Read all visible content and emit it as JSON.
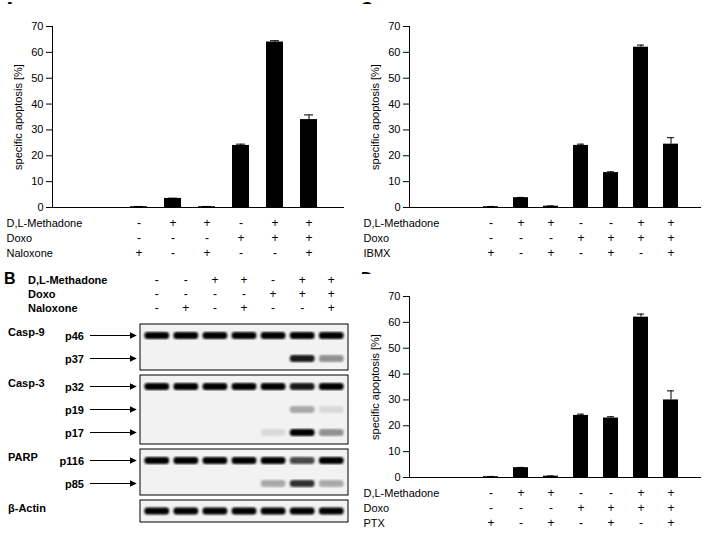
{
  "chart_data": [
    {
      "type": "bar",
      "title": "A",
      "ylabel": "specific apoptosis [%]",
      "categories": [
        null,
        null,
        null,
        null,
        null,
        null
      ],
      "values": [
        0.3,
        3.5,
        0.3,
        24,
        64,
        34
      ],
      "errors": [
        0.1,
        0.1,
        0.1,
        0.5,
        0.5,
        1.8
      ],
      "color": "#000000",
      "ylim": [
        0,
        70
      ],
      "yticks": [
        0,
        10,
        20,
        30,
        40,
        50,
        60,
        70
      ],
      "conditions": [
        {
          "name": "D,L-Methadone",
          "marks": [
            "-",
            "+",
            "+",
            "-",
            "+",
            "+"
          ]
        },
        {
          "name": "Doxo",
          "marks": [
            "-",
            "-",
            "-",
            "+",
            "+",
            "+"
          ]
        },
        {
          "name": "Naloxone",
          "marks": [
            "+",
            "-",
            "+",
            "-",
            "-",
            "+"
          ]
        }
      ]
    },
    {
      "type": "bar",
      "title": "C",
      "ylabel": "specific apoptosis [%]",
      "categories": [
        null,
        null,
        null,
        null,
        null,
        null,
        null
      ],
      "values": [
        0.3,
        3.8,
        0.5,
        24,
        13.5,
        62,
        24.5
      ],
      "errors": [
        0.1,
        0.1,
        0.1,
        0.5,
        0.3,
        0.8,
        2.5
      ],
      "color": "#000000",
      "ylim": [
        0,
        70
      ],
      "yticks": [
        0,
        10,
        20,
        30,
        40,
        50,
        60,
        70
      ],
      "conditions": [
        {
          "name": "D,L-Methadone",
          "marks": [
            "-",
            "+",
            "+",
            "-",
            "-",
            "+",
            "+"
          ]
        },
        {
          "name": "Doxo",
          "marks": [
            "-",
            "-",
            "-",
            "+",
            "+",
            "+",
            "+"
          ]
        },
        {
          "name": "IBMX",
          "marks": [
            "+",
            "-",
            "+",
            "-",
            "+",
            "-",
            "+"
          ]
        }
      ]
    },
    {
      "type": "bar",
      "title": "D",
      "ylabel": "specific apoptosis [%]",
      "categories": [
        null,
        null,
        null,
        null,
        null,
        null,
        null
      ],
      "values": [
        0.3,
        3.8,
        0.5,
        24,
        23,
        62,
        30
      ],
      "errors": [
        0.1,
        0.1,
        0.1,
        0.5,
        0.5,
        1.2,
        3.5
      ],
      "color": "#000000",
      "ylim": [
        0,
        70
      ],
      "yticks": [
        0,
        10,
        20,
        30,
        40,
        50,
        60,
        70
      ],
      "conditions": [
        {
          "name": "D,L-Methadone",
          "marks": [
            "-",
            "+",
            "+",
            "-",
            "-",
            "+",
            "+"
          ]
        },
        {
          "name": "Doxo",
          "marks": [
            "-",
            "-",
            "-",
            "+",
            "+",
            "+",
            "+"
          ]
        },
        {
          "name": "PTX",
          "marks": [
            "+",
            "-",
            "+",
            "-",
            "+",
            "-",
            "+"
          ]
        }
      ]
    }
  ],
  "blot": {
    "title": "B",
    "conditions": [
      {
        "name": "D,L-Methadone",
        "marks": [
          "-",
          "-",
          "+",
          "+",
          "-",
          "+",
          "+"
        ]
      },
      {
        "name": "Doxo",
        "marks": [
          "-",
          "-",
          "-",
          "-",
          "+",
          "+",
          "+"
        ]
      },
      {
        "name": "Naloxone",
        "marks": [
          "-",
          "+",
          "-",
          "+",
          "-",
          "-",
          "+"
        ]
      }
    ],
    "panels": [
      {
        "name": "Casp-9",
        "bands": [
          {
            "label": "p46",
            "intensity": [
              1,
              1,
              1,
              1,
              1,
              1,
              1
            ]
          },
          {
            "label": "p37",
            "intensity": [
              0,
              0,
              0,
              0,
              0,
              0.9,
              0.4
            ]
          }
        ]
      },
      {
        "name": "Casp-3",
        "bands": [
          {
            "label": "p32",
            "intensity": [
              1,
              1,
              1,
              1,
              1,
              0.9,
              1
            ]
          },
          {
            "label": "p19",
            "intensity": [
              0,
              0,
              0,
              0,
              0,
              0.3,
              0.1
            ]
          },
          {
            "label": "p17",
            "intensity": [
              0,
              0,
              0,
              0,
              0.1,
              1,
              0.4
            ]
          }
        ]
      },
      {
        "name": "PARP",
        "bands": [
          {
            "label": "p116",
            "intensity": [
              1,
              1,
              1,
              1,
              1,
              0.7,
              1
            ]
          },
          {
            "label": "p85",
            "intensity": [
              0,
              0,
              0,
              0,
              0.3,
              0.8,
              0.3
            ]
          }
        ]
      },
      {
        "name": "β-Actin",
        "bands": [
          {
            "label": null,
            "intensity": [
              1,
              1,
              1,
              1,
              1,
              1,
              1
            ]
          }
        ]
      }
    ]
  }
}
